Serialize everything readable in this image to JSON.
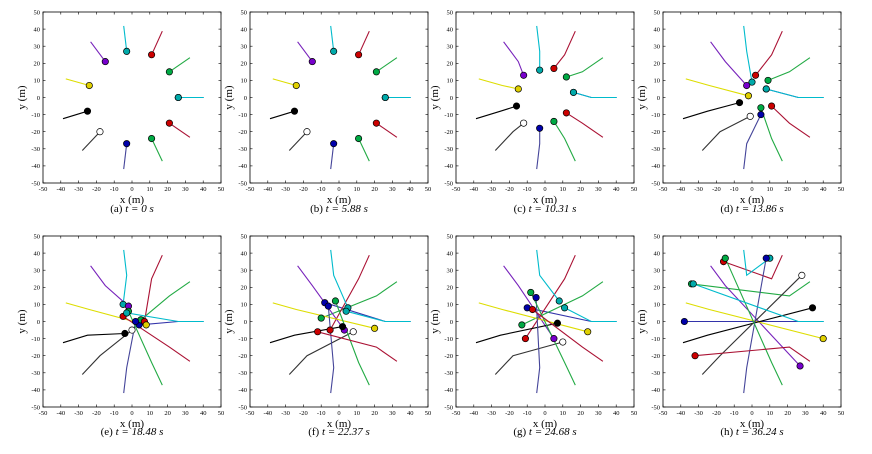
{
  "figure": {
    "axes": {
      "x_label": "x (m)",
      "y_label": "y (m)",
      "x_ticks": [
        -50,
        -40,
        -30,
        -20,
        -10,
        0,
        10,
        20,
        30,
        40,
        50
      ],
      "y_ticks": [
        50,
        40,
        30,
        20,
        10,
        0,
        -10,
        -20,
        -30,
        -40,
        -50
      ],
      "xlim": [
        -50,
        50
      ],
      "ylim": [
        -50,
        50
      ]
    },
    "agent_colors": [
      "#0000aa",
      "#00aa44",
      "#cc0000",
      "#00aaaa",
      "#7700cc",
      "#e0d000",
      "#000000",
      "#ffffff",
      "#0000aa",
      "#00aa44",
      "#cc0000",
      "#00aaaa"
    ],
    "line_colors": [
      "#3333aa",
      "#22aa44",
      "#aa1133",
      "#00bbcc",
      "#7722bb",
      "#dddd00",
      "#000000",
      "#333333",
      "#444499",
      "#22aa44",
      "#aa1133",
      "#00bbcc"
    ]
  },
  "chart_data": [
    {
      "type": "scatter",
      "panel_label": "(a)",
      "time_label": "t = 0 s",
      "t": 0,
      "x": [
        26,
        21,
        11,
        -3,
        -15,
        -24,
        -25,
        -18,
        -3,
        11,
        21,
        26
      ],
      "y": [
        0,
        15,
        25,
        27,
        21,
        7,
        -8,
        -20,
        -27,
        -24,
        -15,
        0
      ]
    },
    {
      "type": "scatter",
      "panel_label": "(b)",
      "time_label": "t = 5.88 s",
      "t": 5.88,
      "x": [
        26,
        21,
        11,
        -3,
        -15,
        -24,
        -25,
        -18,
        -3,
        11,
        21,
        26
      ],
      "y": [
        0,
        15,
        25,
        27,
        21,
        7,
        -8,
        -20,
        -27,
        -24,
        -15,
        0
      ]
    },
    {
      "type": "scatter",
      "panel_label": "(c)",
      "time_label": "t = 10.31 s",
      "t": 10.31,
      "x": [
        16,
        12,
        5,
        -3,
        -12,
        -15,
        -16,
        -12,
        -3,
        5,
        12,
        16
      ],
      "y": [
        3,
        12,
        17,
        16,
        13,
        5,
        -5,
        -15,
        -18,
        -14,
        -9,
        3
      ]
    },
    {
      "type": "scatter",
      "panel_label": "(d)",
      "time_label": "t = 13.86 s",
      "t": 13.86,
      "x": [
        8,
        9,
        2,
        0,
        -3,
        -2,
        -7,
        -1,
        5,
        5,
        11,
        8
      ],
      "y": [
        5,
        10,
        13,
        9,
        7,
        1,
        -3,
        -11,
        -10,
        -6,
        -5,
        5
      ]
    },
    {
      "type": "scatter",
      "panel_label": "(e)",
      "time_label": "t = 18.48 s",
      "t": 18.48,
      "x": [
        4,
        5,
        7,
        -5,
        -2,
        8,
        -4,
        0,
        2,
        -2,
        -5,
        -3
      ],
      "y": [
        -2,
        1,
        0,
        10,
        9,
        -2,
        -7,
        -5,
        0,
        6,
        3,
        5
      ]
    },
    {
      "type": "scatter",
      "panel_label": "(f)",
      "time_label": "t = 22.37 s",
      "t": 22.37,
      "x": [
        -8,
        -10,
        -5,
        5,
        3,
        20,
        2,
        8,
        -6,
        -2,
        -12,
        4
      ],
      "y": [
        11,
        2,
        -5,
        8,
        -5,
        -4,
        -3,
        -6,
        9,
        12,
        -6,
        6
      ]
    },
    {
      "type": "scatter",
      "panel_label": "(g)",
      "time_label": "t = 24.68 s",
      "t": 24.68,
      "x": [
        -10,
        -13,
        -11,
        8,
        5,
        24,
        7,
        10,
        -5,
        -8,
        -7,
        11
      ],
      "y": [
        8,
        -2,
        -10,
        12,
        -10,
        -6,
        -1,
        -12,
        14,
        17,
        7,
        8
      ]
    },
    {
      "type": "scatter",
      "panel_label": "(h)",
      "time_label": "t = 36.24 s",
      "t": 36.24,
      "x": [
        -38,
        -34,
        -16,
        10,
        27,
        40,
        34,
        28,
        8,
        -15,
        -32,
        -33
      ],
      "y": [
        0,
        22,
        35,
        37,
        -26,
        -10,
        8,
        27,
        37,
        37,
        -20,
        22
      ]
    }
  ]
}
